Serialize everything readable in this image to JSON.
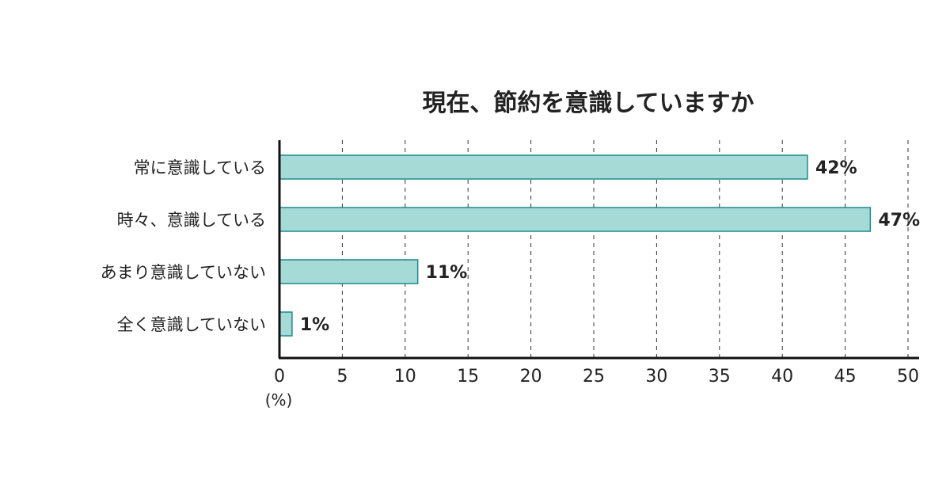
{
  "chart_data": {
    "type": "bar",
    "orientation": "horizontal",
    "title": "現在、節約を意識していますか",
    "categories": [
      "常に意識している",
      "時々、意識している",
      "あまり意識していない",
      "全く意識していない"
    ],
    "values": [
      42,
      47,
      11,
      1
    ],
    "value_labels": [
      "42%",
      "47%",
      "11%",
      "1%"
    ],
    "xlim": [
      0,
      50
    ],
    "xticks": [
      "0",
      "5",
      "10",
      "15",
      "20",
      "25",
      "30",
      "35",
      "40",
      "45",
      "50"
    ],
    "xunit": "(%)",
    "grid": "vertical dashed",
    "colors": {
      "bar_fill": "#a5dad7",
      "bar_stroke": "#1f8a8a",
      "axis": "#111111",
      "grid": "#333333"
    }
  }
}
